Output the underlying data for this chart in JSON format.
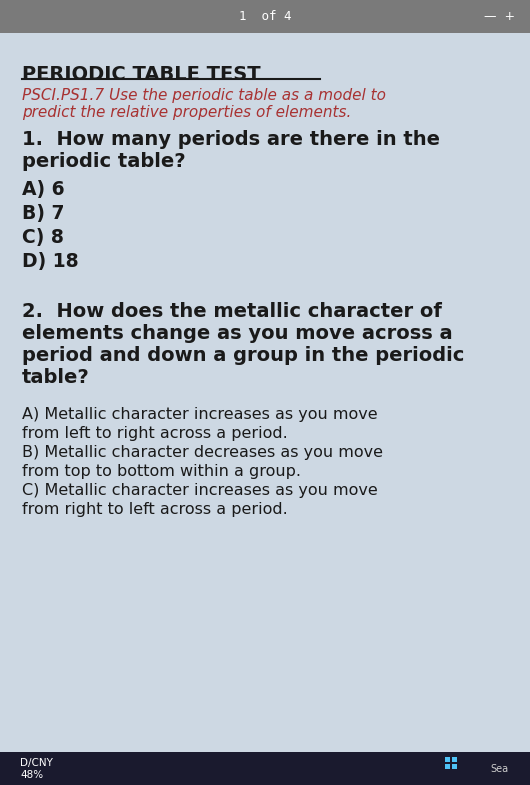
{
  "bg_color": "#cdd8e3",
  "top_bar_color": "#7a7a7a",
  "bottom_bar_color": "#1a1a2e",
  "title": "PERIODIC TABLE TEST",
  "title_color": "#1a1a1a",
  "subtitle_color": "#a83232",
  "subtitle_line1": "PSCI.PS1.7 Use the periodic table as a model to",
  "subtitle_line2": "predict the relative properties of elements.",
  "q1_line1": "1.  How many periods are there in the",
  "q1_line2": "periodic table?",
  "q1_color": "#1a1a1a",
  "q1_options": [
    "A) 6",
    "B) 7",
    "C) 8",
    "D) 18"
  ],
  "q1_options_color": "#1a1a1a",
  "q2_line1": "2.  How does the metallic character of",
  "q2_line2": "elements change as you move across a",
  "q2_line3": "period and down a group in the periodic",
  "q2_line4": "table?",
  "q2_color": "#1a1a1a",
  "q2_optA_line1": "A) Metallic character increases as you move",
  "q2_optA_line2": "from left to right across a period.",
  "q2_optB_line1": "B) Metallic character decreases as you move",
  "q2_optB_line2": "from top to bottom within a group.",
  "q2_optC_line1": "C) Metallic character increases as you move",
  "q2_optC_line2": "from right to left across a period.",
  "q2_options_color": "#1a1a1a",
  "top_bar_text": "1  of 4",
  "bottom_left_text1": "D/CNY",
  "bottom_left_text2": "48%",
  "bottom_bar_text_color": "#ffffff"
}
